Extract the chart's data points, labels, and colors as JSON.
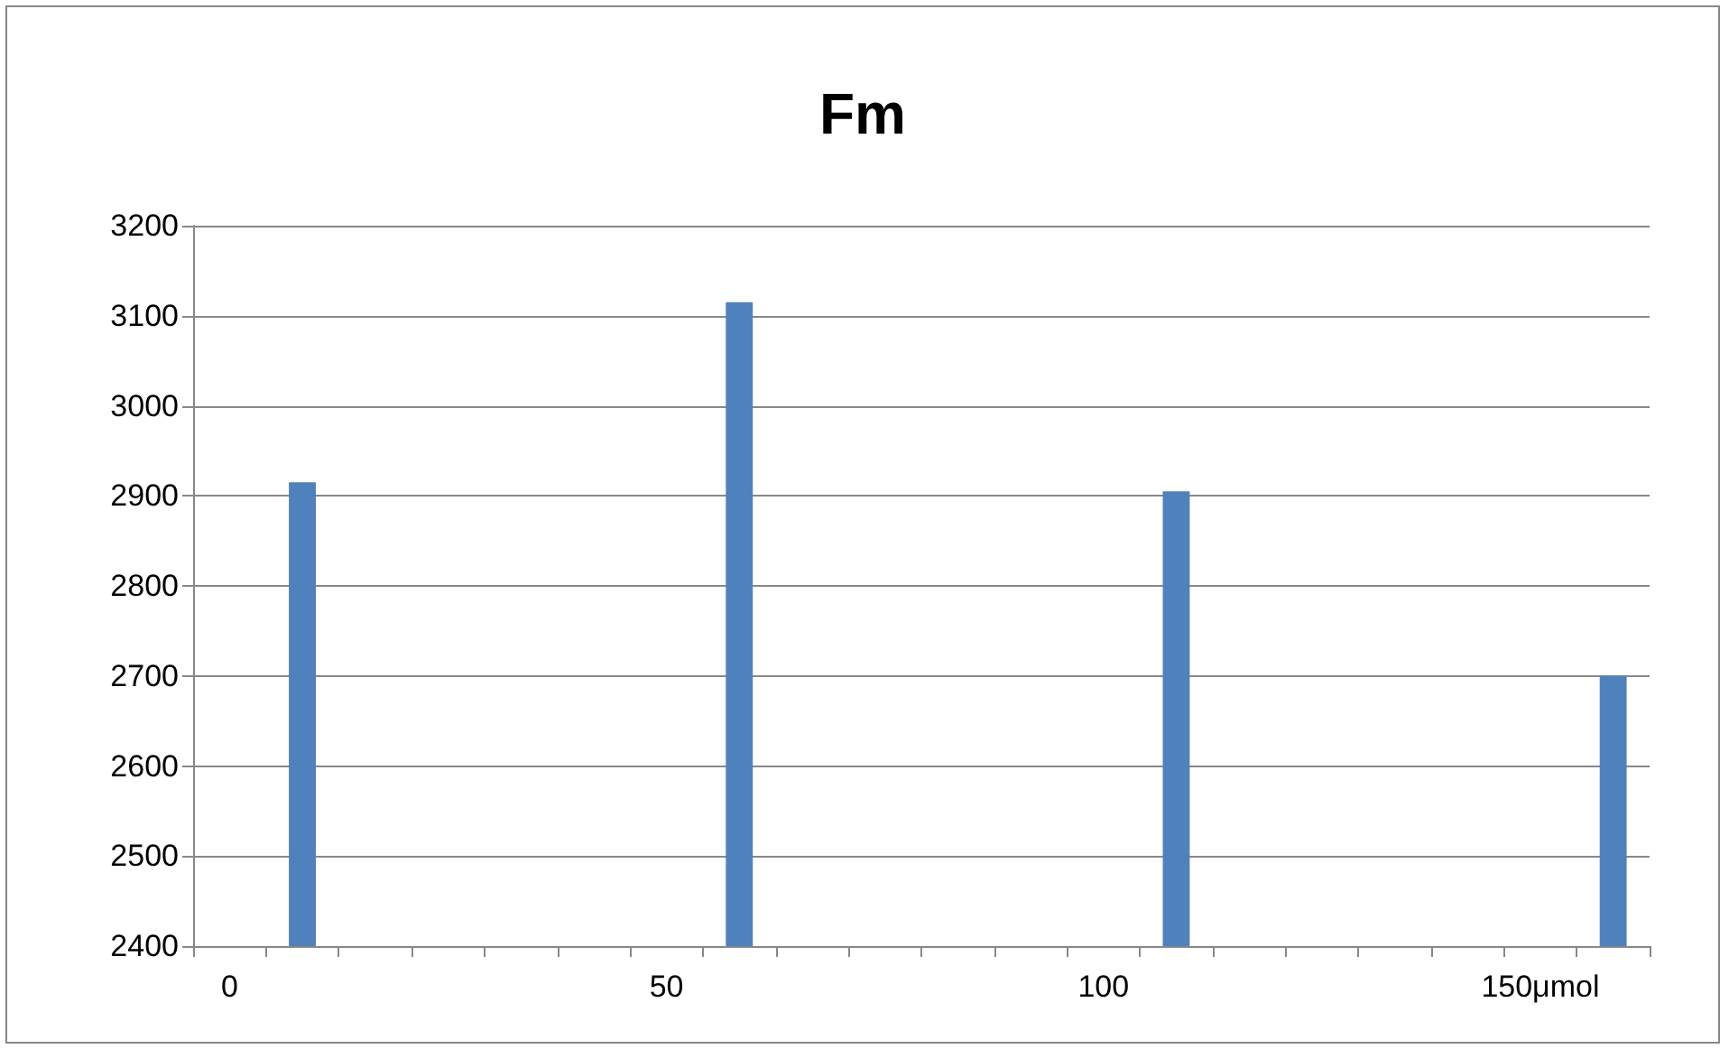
{
  "chart_data": {
    "type": "bar",
    "title": "Fm",
    "categories": [
      "0",
      null,
      null,
      null,
      null,
      null,
      "50",
      null,
      null,
      null,
      null,
      null,
      "100",
      null,
      null,
      null,
      null,
      null,
      "150μmol",
      null
    ],
    "values": [
      null,
      2915,
      null,
      null,
      null,
      null,
      null,
      3115,
      null,
      null,
      null,
      null,
      null,
      2905,
      null,
      null,
      null,
      null,
      null,
      2700
    ],
    "color": "#4f81bd",
    "ylim": [
      2400,
      3200
    ],
    "yticks": [
      2400,
      2500,
      2600,
      2700,
      2800,
      2900,
      3000,
      3100,
      3200
    ],
    "grid": "y"
  }
}
